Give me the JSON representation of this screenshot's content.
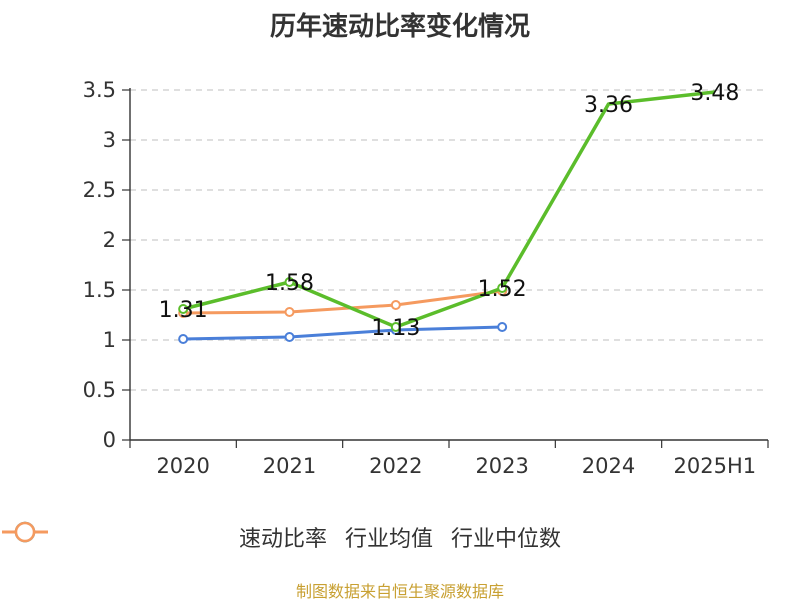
{
  "chart_data": {
    "type": "line",
    "title": "历年速动比率变化情况",
    "categories": [
      "2020",
      "2021",
      "2022",
      "2023",
      "2024",
      "2025H1"
    ],
    "ylim": [
      0,
      3.5
    ],
    "yticks": [
      0,
      0.5,
      1,
      1.5,
      2,
      2.5,
      3,
      3.5
    ],
    "ytick_labels": [
      "0",
      "0.5",
      "1",
      "1.5",
      "2",
      "2.5",
      "3",
      "3.5"
    ],
    "grid": true,
    "legend_position": "bottom",
    "series": [
      {
        "name": "速动比率",
        "color": "#5bbd2b",
        "values": [
          1.31,
          1.58,
          1.13,
          1.52,
          3.36,
          3.48
        ],
        "show_labels": true,
        "labels": [
          "1.31",
          "1.58",
          "1.13",
          "1.52",
          "3.36",
          "3.48"
        ]
      },
      {
        "name": "行业均值",
        "color": "#4a7fd9",
        "values": [
          1.01,
          1.03,
          1.1,
          1.13,
          null,
          null
        ],
        "show_labels": false
      },
      {
        "name": "行业中位数",
        "color": "#f59a5f",
        "values": [
          1.27,
          1.28,
          1.35,
          1.49,
          null,
          null
        ],
        "show_labels": false
      }
    ]
  },
  "footer": {
    "source": "制图数据来自恒生聚源数据库"
  }
}
